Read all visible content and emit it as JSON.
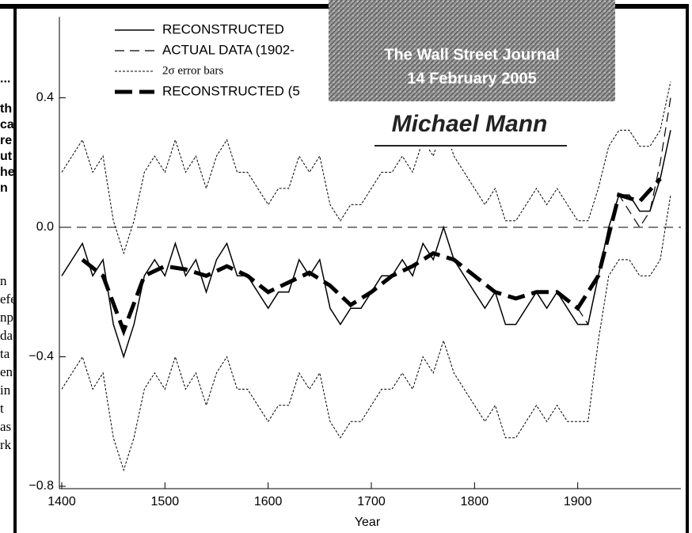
{
  "chart_data": {
    "type": "line",
    "x_label": "Year",
    "xlim": [
      1400,
      2000
    ],
    "xticks": [
      1400,
      1500,
      1600,
      1700,
      1800,
      1900
    ],
    "ylim": [
      -0.8,
      0.65
    ],
    "yticks": [
      {
        "value": -0.8,
        "label": "−0.8"
      },
      {
        "value": -0.4,
        "label": "−0.4"
      },
      {
        "value": 0,
        "label": "0.0"
      },
      0.4
    ],
    "reference_line": 0,
    "series": [
      {
        "name": "RECONSTRUCTED",
        "style": "solid",
        "color": "#000000",
        "x": [
          1400,
          1410,
          1420,
          1430,
          1440,
          1450,
          1460,
          1470,
          1480,
          1490,
          1500,
          1510,
          1520,
          1530,
          1540,
          1550,
          1560,
          1570,
          1580,
          1590,
          1600,
          1610,
          1620,
          1630,
          1640,
          1650,
          1660,
          1670,
          1680,
          1690,
          1700,
          1710,
          1720,
          1730,
          1740,
          1750,
          1760,
          1770,
          1780,
          1790,
          1800,
          1810,
          1820,
          1830,
          1840,
          1850,
          1860,
          1870,
          1880,
          1890,
          1900,
          1910,
          1920,
          1930,
          1940,
          1950,
          1960,
          1970,
          1980,
          1990
        ],
        "values": [
          -0.15,
          -0.1,
          -0.05,
          -0.15,
          -0.1,
          -0.3,
          -0.4,
          -0.3,
          -0.15,
          -0.1,
          -0.15,
          -0.05,
          -0.15,
          -0.1,
          -0.2,
          -0.1,
          -0.05,
          -0.15,
          -0.15,
          -0.2,
          -0.25,
          -0.2,
          -0.2,
          -0.1,
          -0.15,
          -0.1,
          -0.25,
          -0.3,
          -0.25,
          -0.25,
          -0.2,
          -0.15,
          -0.15,
          -0.1,
          -0.15,
          -0.05,
          -0.1,
          0.0,
          -0.1,
          -0.15,
          -0.2,
          -0.25,
          -0.2,
          -0.3,
          -0.3,
          -0.25,
          -0.2,
          -0.25,
          -0.2,
          -0.25,
          -0.3,
          -0.3,
          -0.15,
          0.0,
          0.1,
          0.1,
          0.05,
          0.05,
          0.15,
          0.3
        ]
      },
      {
        "name": "ACTUAL DATA (1902-",
        "style": "dashed",
        "color": "#000000",
        "x": [
          1900,
          1910,
          1920,
          1930,
          1940,
          1950,
          1960,
          1970,
          1980,
          1990
        ],
        "values": [
          -0.25,
          -0.3,
          -0.15,
          0.0,
          0.1,
          0.05,
          0.0,
          0.05,
          0.2,
          0.4
        ]
      },
      {
        "name": "2σ error bars",
        "style": "dotted",
        "color": "#000000",
        "x": [
          1400,
          1410,
          1420,
          1430,
          1440,
          1450,
          1460,
          1470,
          1480,
          1490,
          1500,
          1510,
          1520,
          1530,
          1540,
          1550,
          1560,
          1570,
          1580,
          1590,
          1600,
          1610,
          1620,
          1630,
          1640,
          1650,
          1660,
          1670,
          1680,
          1690,
          1700,
          1710,
          1720,
          1730,
          1740,
          1750,
          1760,
          1770,
          1780,
          1790,
          1800,
          1810,
          1820,
          1830,
          1840,
          1850,
          1860,
          1870,
          1880,
          1890,
          1900,
          1910,
          1920,
          1930,
          1940,
          1950,
          1960,
          1970,
          1980,
          1990
        ],
        "upper": [
          0.17,
          0.22,
          0.27,
          0.17,
          0.22,
          0.02,
          -0.08,
          0.02,
          0.17,
          0.22,
          0.17,
          0.27,
          0.17,
          0.22,
          0.12,
          0.22,
          0.27,
          0.17,
          0.17,
          0.12,
          0.07,
          0.12,
          0.12,
          0.22,
          0.17,
          0.22,
          0.07,
          0.02,
          0.07,
          0.07,
          0.12,
          0.17,
          0.17,
          0.22,
          0.17,
          0.27,
          0.22,
          0.32,
          0.22,
          0.17,
          0.12,
          0.07,
          0.12,
          0.02,
          0.02,
          0.07,
          0.12,
          0.07,
          0.12,
          0.07,
          0.02,
          0.02,
          0.12,
          0.25,
          0.3,
          0.3,
          0.25,
          0.25,
          0.3,
          0.45
        ],
        "lower": [
          -0.5,
          -0.45,
          -0.4,
          -0.5,
          -0.45,
          -0.65,
          -0.75,
          -0.65,
          -0.5,
          -0.45,
          -0.5,
          -0.4,
          -0.5,
          -0.45,
          -0.55,
          -0.45,
          -0.4,
          -0.5,
          -0.5,
          -0.55,
          -0.6,
          -0.55,
          -0.55,
          -0.45,
          -0.5,
          -0.45,
          -0.6,
          -0.65,
          -0.6,
          -0.6,
          -0.55,
          -0.5,
          -0.5,
          -0.45,
          -0.5,
          -0.4,
          -0.45,
          -0.35,
          -0.45,
          -0.5,
          -0.55,
          -0.6,
          -0.55,
          -0.65,
          -0.65,
          -0.6,
          -0.55,
          -0.6,
          -0.55,
          -0.6,
          -0.6,
          -0.6,
          -0.35,
          -0.15,
          -0.1,
          -0.1,
          -0.15,
          -0.15,
          -0.1,
          0.1
        ]
      },
      {
        "name": "RECONSTRUCTED (5",
        "style": "thick-dashed",
        "color": "#000000",
        "x": [
          1420,
          1440,
          1460,
          1480,
          1500,
          1520,
          1540,
          1560,
          1580,
          1600,
          1620,
          1640,
          1660,
          1680,
          1700,
          1720,
          1740,
          1760,
          1780,
          1800,
          1820,
          1840,
          1860,
          1880,
          1900,
          1920,
          1940,
          1960,
          1980
        ],
        "values": [
          -0.1,
          -0.15,
          -0.32,
          -0.15,
          -0.12,
          -0.13,
          -0.15,
          -0.12,
          -0.15,
          -0.2,
          -0.17,
          -0.14,
          -0.18,
          -0.24,
          -0.2,
          -0.15,
          -0.12,
          -0.08,
          -0.1,
          -0.15,
          -0.2,
          -0.22,
          -0.2,
          -0.2,
          -0.25,
          -0.15,
          0.1,
          0.08,
          0.15
        ]
      }
    ]
  },
  "overlay": {
    "publication": "The Wall Street Journal",
    "date": "14 February 2005",
    "name": "Michael Mann"
  },
  "background_text": {
    "bold": [
      "...",
      "th",
      "ca",
      "re",
      "ut",
      "he",
      "n"
    ],
    "serif": [
      "n",
      "efe",
      "np",
      "da",
      "ta",
      "en",
      "in",
      "t",
      "as",
      "rk"
    ]
  }
}
